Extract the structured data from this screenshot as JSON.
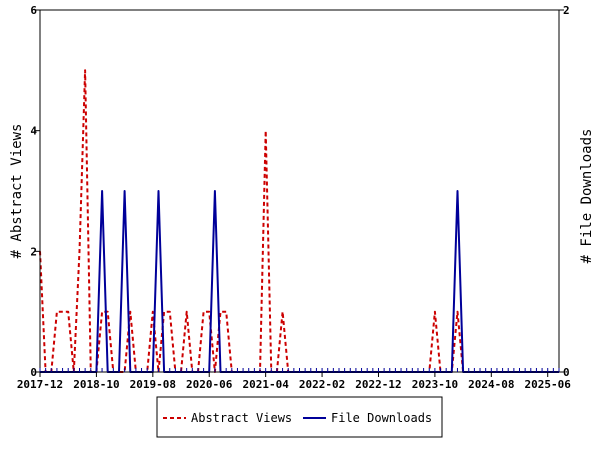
{
  "chart_data": {
    "type": "line",
    "ylabel": "# Abstract Views",
    "y2label": "# File Downloads",
    "ylim": [
      0,
      6
    ],
    "y2lim": [
      0,
      2
    ],
    "yticks": [
      "0",
      "2",
      "4",
      "6"
    ],
    "y2ticks": [
      "0",
      "2"
    ],
    "xlim": [
      "2017-12",
      "2025-08"
    ],
    "xticks": [
      "2017-12",
      "2018-10",
      "2019-08",
      "2020-06",
      "2021-04",
      "2022-02",
      "2022-12",
      "2023-10",
      "2024-08",
      "2025-06"
    ],
    "grid": false,
    "legend_placement": "bottom-center",
    "colors": {
      "abstract_views": "#cc0000",
      "file_downloads": "#000099"
    },
    "series": [
      {
        "name": "Abstract Views",
        "axis": "left",
        "style": "dashed",
        "points": [
          [
            "2017-12",
            2
          ],
          [
            "2018-01",
            0
          ],
          [
            "2018-02",
            0
          ],
          [
            "2018-03",
            1
          ],
          [
            "2018-04",
            1
          ],
          [
            "2018-05",
            1
          ],
          [
            "2018-06",
            0
          ],
          [
            "2018-07",
            2
          ],
          [
            "2018-08",
            5
          ],
          [
            "2018-09",
            0
          ],
          [
            "2018-10",
            0
          ],
          [
            "2018-11",
            1
          ],
          [
            "2018-12",
            1
          ],
          [
            "2019-01",
            0
          ],
          [
            "2019-02",
            0
          ],
          [
            "2019-03",
            0
          ],
          [
            "2019-04",
            1
          ],
          [
            "2019-05",
            0
          ],
          [
            "2019-06",
            0
          ],
          [
            "2019-07",
            0
          ],
          [
            "2019-08",
            1
          ],
          [
            "2019-09",
            0
          ],
          [
            "2019-10",
            1
          ],
          [
            "2019-11",
            1
          ],
          [
            "2019-12",
            0
          ],
          [
            "2020-01",
            0
          ],
          [
            "2020-02",
            1
          ],
          [
            "2020-03",
            0
          ],
          [
            "2020-04",
            0
          ],
          [
            "2020-05",
            1
          ],
          [
            "2020-06",
            1
          ],
          [
            "2020-07",
            0
          ],
          [
            "2020-08",
            1
          ],
          [
            "2020-09",
            1
          ],
          [
            "2020-10",
            0
          ],
          [
            "2020-11",
            0
          ],
          [
            "2020-12",
            0
          ],
          [
            "2021-01",
            0
          ],
          [
            "2021-02",
            0
          ],
          [
            "2021-03",
            0
          ],
          [
            "2021-04",
            4
          ],
          [
            "2021-05",
            0
          ],
          [
            "2021-06",
            0
          ],
          [
            "2021-07",
            1
          ],
          [
            "2021-08",
            0
          ],
          [
            "2023-09",
            0
          ],
          [
            "2023-10",
            1
          ],
          [
            "2023-11",
            0
          ],
          [
            "2023-12",
            0
          ],
          [
            "2024-01",
            0
          ],
          [
            "2024-02",
            1
          ],
          [
            "2024-03",
            0
          ],
          [
            "2025-08",
            0
          ]
        ]
      },
      {
        "name": "File Downloads",
        "axis": "right",
        "style": "solid",
        "points": [
          [
            "2017-12",
            0
          ],
          [
            "2018-09",
            0
          ],
          [
            "2018-10",
            0
          ],
          [
            "2018-11",
            1
          ],
          [
            "2018-12",
            0
          ],
          [
            "2019-01",
            0
          ],
          [
            "2019-02",
            0
          ],
          [
            "2019-03",
            1
          ],
          [
            "2019-04",
            0
          ],
          [
            "2019-05",
            0
          ],
          [
            "2019-06",
            0
          ],
          [
            "2019-07",
            0
          ],
          [
            "2019-08",
            0
          ],
          [
            "2019-09",
            1
          ],
          [
            "2019-10",
            0
          ],
          [
            "2019-11",
            0
          ],
          [
            "2020-05",
            0
          ],
          [
            "2020-06",
            0
          ],
          [
            "2020-07",
            1
          ],
          [
            "2020-08",
            0
          ],
          [
            "2020-09",
            0
          ],
          [
            "2024-01",
            0
          ],
          [
            "2024-02",
            1
          ],
          [
            "2024-03",
            0
          ],
          [
            "2025-08",
            0
          ]
        ]
      }
    ]
  }
}
